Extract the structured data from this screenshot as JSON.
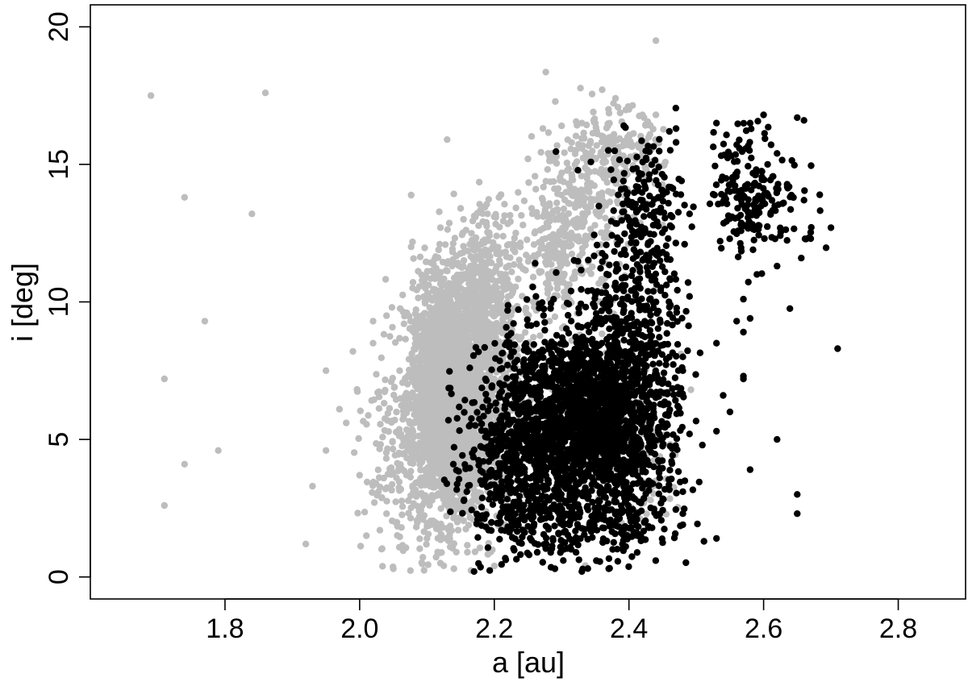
{
  "chart_data": {
    "type": "scatter",
    "title": "",
    "xlabel": "a [au]",
    "ylabel": "i [deg]",
    "xlim": [
      1.6,
      2.9
    ],
    "ylim": [
      -0.8,
      20.8
    ],
    "x_ticks": [
      1.8,
      2.0,
      2.2,
      2.4,
      2.6,
      2.8
    ],
    "x_tick_labels": [
      "1.8",
      "2.0",
      "2.2",
      "2.4",
      "2.6",
      "2.8"
    ],
    "y_ticks": [
      0,
      5,
      10,
      15,
      20
    ],
    "y_tick_labels": [
      "0",
      "5",
      "10",
      "15",
      "20"
    ],
    "grid": false,
    "legend": "none",
    "series": [
      {
        "color": "#bdbdbd",
        "points": [
          [
            1.69,
            17.5
          ],
          [
            1.86,
            17.6
          ],
          [
            1.74,
            13.8
          ],
          [
            1.84,
            13.2
          ],
          [
            1.77,
            9.3
          ],
          [
            1.71,
            7.2
          ],
          [
            1.74,
            4.1
          ],
          [
            1.79,
            4.6
          ],
          [
            1.71,
            2.6
          ],
          [
            1.92,
            1.2
          ],
          [
            1.93,
            3.3
          ],
          [
            1.95,
            4.6
          ],
          [
            1.95,
            7.5
          ],
          [
            2.44,
            19.5
          ],
          [
            2.13,
            15.9
          ],
          [
            2.38,
            17.4
          ],
          [
            2.02,
            8.5
          ],
          [
            2.04,
            9.5
          ],
          [
            2.05,
            0.3
          ],
          [
            1.99,
            8.2
          ],
          [
            2.02,
            9.3
          ],
          [
            1.98,
            5.6
          ],
          [
            1.97,
            6.1
          ],
          [
            2.0,
            3.7
          ],
          [
            2.01,
            1.5
          ],
          [
            2.03,
            1.7
          ],
          [
            2.04,
            2.3
          ],
          [
            2.07,
            9.6
          ],
          [
            2.1,
            10.6
          ],
          [
            2.12,
            12.7
          ],
          [
            2.15,
            13.4
          ],
          [
            2.19,
            13.2
          ],
          [
            2.21,
            13.9
          ],
          [
            2.25,
            15.2
          ],
          [
            2.28,
            15.4
          ],
          [
            2.3,
            16.4
          ],
          [
            2.33,
            16.5
          ],
          [
            2.35,
            16.5
          ],
          [
            2.4,
            17.0
          ],
          [
            2.42,
            16.8
          ],
          [
            2.44,
            16.8
          ],
          [
            2.14,
            0.3
          ],
          [
            2.12,
            0.5
          ],
          [
            2.16,
            0.9
          ],
          [
            2.2,
            0.4
          ],
          [
            2.1,
            1.4
          ],
          [
            2.13,
            2.6
          ],
          [
            2.3,
            2.5
          ],
          [
            2.38,
            3.0
          ],
          [
            2.44,
            10.5
          ],
          [
            2.45,
            12.8
          ],
          [
            2.42,
            15.5
          ],
          [
            2.28,
            11.8
          ],
          [
            2.26,
            12.5
          ]
        ],
        "clusters": [
          {
            "center": [
              2.13,
              6.4
            ],
            "spread": [
              0.027,
              2.1
            ],
            "count": 2300
          },
          {
            "center": [
              2.145,
              8.2
            ],
            "spread": [
              0.033,
              1.8
            ],
            "count": 500
          },
          {
            "center": [
              2.19,
              9.4
            ],
            "spread": [
              0.03,
              1.5
            ],
            "count": 320
          },
          {
            "center": [
              2.18,
              5.0
            ],
            "spread": [
              0.035,
              1.7
            ],
            "count": 350
          },
          {
            "center": [
              2.06,
              4.3
            ],
            "spread": [
              0.03,
              1.8
            ],
            "count": 180
          },
          {
            "center": [
              2.21,
              11.3
            ],
            "spread": [
              0.035,
              1.3
            ],
            "count": 150
          },
          {
            "center": [
              2.32,
              13.5
            ],
            "spread": [
              0.035,
              1.6
            ],
            "count": 280
          },
          {
            "center": [
              2.38,
              15.2
            ],
            "spread": [
              0.035,
              0.9
            ],
            "count": 170
          },
          {
            "center": [
              2.295,
              11.4
            ],
            "spread": [
              0.015,
              0.9
            ],
            "count": 90
          },
          {
            "center": [
              2.33,
              6.5
            ],
            "spread": [
              0.07,
              1.8
            ],
            "count": 90
          },
          {
            "center": [
              2.43,
              4.2
            ],
            "spread": [
              0.025,
              1.5
            ],
            "count": 60
          }
        ]
      },
      {
        "color": "#000000",
        "points": [
          [
            2.71,
            8.3
          ],
          [
            2.62,
            5.0
          ],
          [
            2.65,
            3.0
          ],
          [
            2.65,
            2.3
          ],
          [
            2.58,
            3.9
          ],
          [
            2.53,
            1.4
          ],
          [
            2.53,
            5.3
          ],
          [
            2.54,
            6.6
          ],
          [
            2.55,
            6.0
          ],
          [
            2.56,
            9.3
          ],
          [
            2.57,
            8.9
          ],
          [
            2.57,
            10.1
          ],
          [
            2.53,
            8.5
          ],
          [
            2.57,
            7.2
          ],
          [
            2.57,
            7.3
          ],
          [
            2.58,
            9.4
          ],
          [
            2.59,
            11.0
          ],
          [
            2.62,
            11.3
          ],
          [
            2.7,
            12.7
          ],
          [
            2.66,
            13.7
          ],
          [
            2.62,
            15.4
          ],
          [
            2.67,
            12.3
          ],
          [
            2.53,
            16.5
          ],
          [
            2.58,
            16.5
          ],
          [
            2.6,
            16.8
          ],
          [
            2.65,
            16.7
          ],
          [
            2.66,
            16.6
          ],
          [
            2.48,
            3.1
          ],
          [
            2.48,
            2.3
          ],
          [
            2.48,
            1.9
          ],
          [
            2.49,
            5.2
          ],
          [
            2.48,
            7.5
          ],
          [
            2.48,
            8.0
          ],
          [
            2.49,
            10.2
          ],
          [
            2.47,
            16.3
          ],
          [
            2.47,
            15.8
          ],
          [
            2.46,
            16.2
          ],
          [
            2.17,
            0.2
          ],
          [
            2.29,
            0.3
          ],
          [
            2.33,
            0.2
          ],
          [
            2.37,
            0.3
          ],
          [
            2.49,
            13.2
          ]
        ],
        "clusters": [
          {
            "center": [
              2.27,
              5.2
            ],
            "spread": [
              0.045,
              1.9
            ],
            "count": 950
          },
          {
            "center": [
              2.355,
              6.3
            ],
            "spread": [
              0.04,
              1.6
            ],
            "count": 950
          },
          {
            "center": [
              2.39,
              4.0
            ],
            "spread": [
              0.04,
              2.0
            ],
            "count": 450
          },
          {
            "center": [
              2.41,
              10.2
            ],
            "spread": [
              0.035,
              2.5
            ],
            "count": 300
          },
          {
            "center": [
              2.43,
              13.5
            ],
            "spread": [
              0.025,
              1.3
            ],
            "count": 130
          },
          {
            "center": [
              2.3,
              2.0
            ],
            "spread": [
              0.06,
              1.0
            ],
            "count": 130
          },
          {
            "center": [
              2.205,
              3.7
            ],
            "spread": [
              0.035,
              1.5
            ],
            "count": 180
          },
          {
            "center": [
              2.575,
              14.1
            ],
            "spread": [
              0.025,
              1.1
            ],
            "count": 160
          },
          {
            "center": [
              2.62,
              13.4
            ],
            "spread": [
              0.03,
              1.2
            ],
            "count": 50
          },
          {
            "center": [
              2.45,
              5.8
            ],
            "spread": [
              0.02,
              1.8
            ],
            "count": 60
          }
        ]
      }
    ]
  }
}
